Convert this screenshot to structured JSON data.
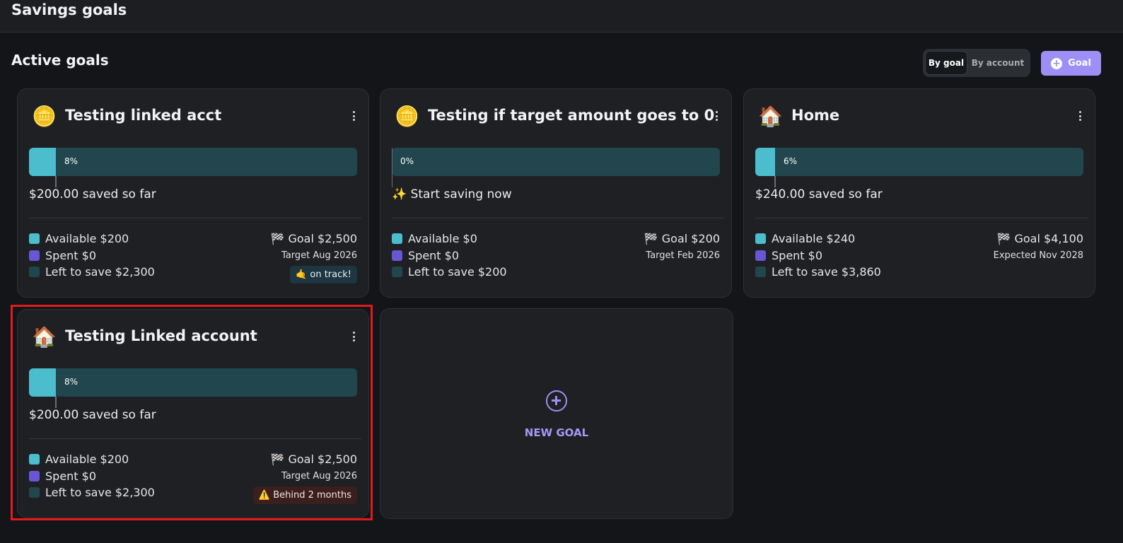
{
  "header": {
    "title": "Savings goals"
  },
  "section": {
    "title": "Active goals"
  },
  "view_toggle": {
    "by_goal": "By goal",
    "by_account": "By account",
    "selected": "By goal"
  },
  "add_goal_button": {
    "label": "Goal",
    "icon": "plus-icon"
  },
  "goals": [
    {
      "emoji": "🪙",
      "name": "Testing linked acct",
      "progress_percent": 8,
      "progress_label": "8%",
      "summary": "$200.00 saved so far",
      "available": "Available $200",
      "spent": "Spent  $0",
      "left": "Left to save  $2,300",
      "goal": "🏁 Goal $2,500",
      "target": "Target Aug 2026",
      "badge": "🤙 on track!"
    },
    {
      "emoji": "🪙",
      "name": "Testing if target amount goes to 0",
      "progress_percent": 0,
      "progress_label": "0%",
      "summary": "✨ Start saving now",
      "available": "Available $0",
      "spent": "Spent  $0",
      "left": "Left to save  $200",
      "goal": "🏁 Goal $200",
      "target": "Target Feb 2026",
      "badge": ""
    },
    {
      "emoji": "🏠",
      "name": "Home",
      "progress_percent": 6,
      "progress_label": "6%",
      "summary": "$240.00 saved so far",
      "available": "Available $240",
      "spent": "Spent  $0",
      "left": "Left to save  $3,860",
      "goal": "🏁 Goal $4,100",
      "target": "Expected Nov 2028",
      "badge": ""
    },
    {
      "emoji": "🏠",
      "name": "Testing Linked account",
      "progress_percent": 8,
      "progress_label": "8%",
      "summary": "$200.00 saved so far",
      "available": "Available $200",
      "spent": "Spent  $0",
      "left": "Left to save  $2,300",
      "goal": "🏁 Goal $2,500",
      "target": "Target Aug 2026",
      "badge": "⚠️ Behind 2 months"
    }
  ],
  "new_goal": {
    "label": "NEW GOAL",
    "icon": "plus-circle-icon"
  },
  "colors": {
    "available": "#4bbdcd",
    "spent": "#6a55d4",
    "left": "#22464d",
    "accent": "#9d8ff6",
    "highlight": "#e3191c"
  }
}
